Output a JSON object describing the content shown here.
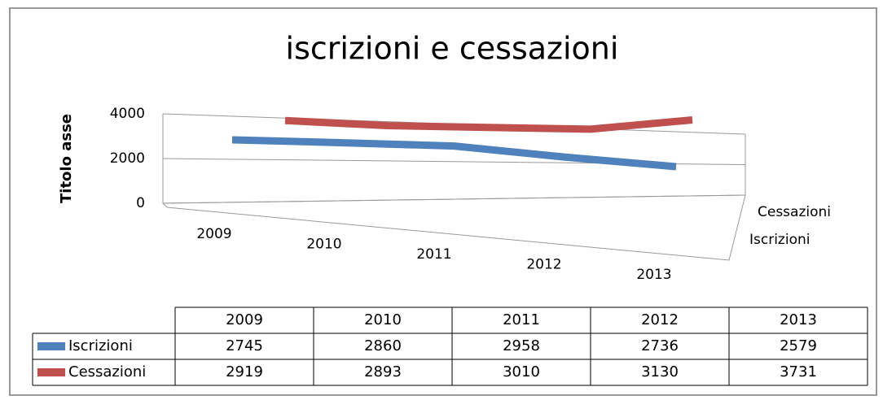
{
  "chart_data": {
    "type": "line3d",
    "title": "iscrizioni e cessazioni",
    "y_axis_label": "Titolo asse",
    "categories": [
      "2009",
      "2010",
      "2011",
      "2012",
      "2013"
    ],
    "series": [
      {
        "name": "Iscrizioni",
        "color": "#4f81bd",
        "values": [
          2745,
          2860,
          2958,
          2736,
          2579
        ]
      },
      {
        "name": "Cessazioni",
        "color": "#c0504d",
        "values": [
          2919,
          2893,
          3010,
          3130,
          3731
        ]
      }
    ],
    "ylim": [
      0,
      4000
    ],
    "yticks": [
      0,
      2000,
      4000
    ],
    "grid": true,
    "data_table": true
  }
}
